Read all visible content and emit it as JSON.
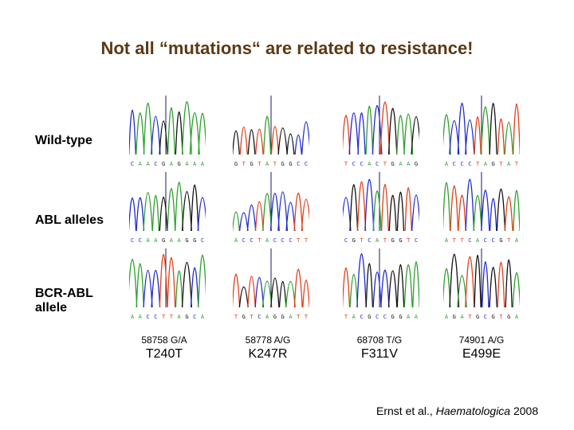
{
  "title": "Not all “mutations“ are related to resistance!",
  "row_labels": {
    "wild_type": "Wild-type",
    "abl_alleles": "ABL alleles",
    "bcr_abl_line1": "BCR-ABL",
    "bcr_abl_line2": "allele"
  },
  "mutations": [
    {
      "position": "58758 G/A",
      "aa_change": "T240T"
    },
    {
      "position": "58778 A/G",
      "aa_change": "K247R"
    },
    {
      "position": "68708 T/G",
      "aa_change": "F311V"
    },
    {
      "position": "74901 A/G",
      "aa_change": "E499E"
    }
  ],
  "citation": {
    "authors": "Ernst et al., ",
    "journal": "Haematologica",
    "year": " 2008"
  },
  "colors": {
    "title": "#5a3a16",
    "base_A": "#2ca02c",
    "base_C": "#1f2ad0",
    "base_G": "#111111",
    "base_T": "#e0401a"
  }
}
